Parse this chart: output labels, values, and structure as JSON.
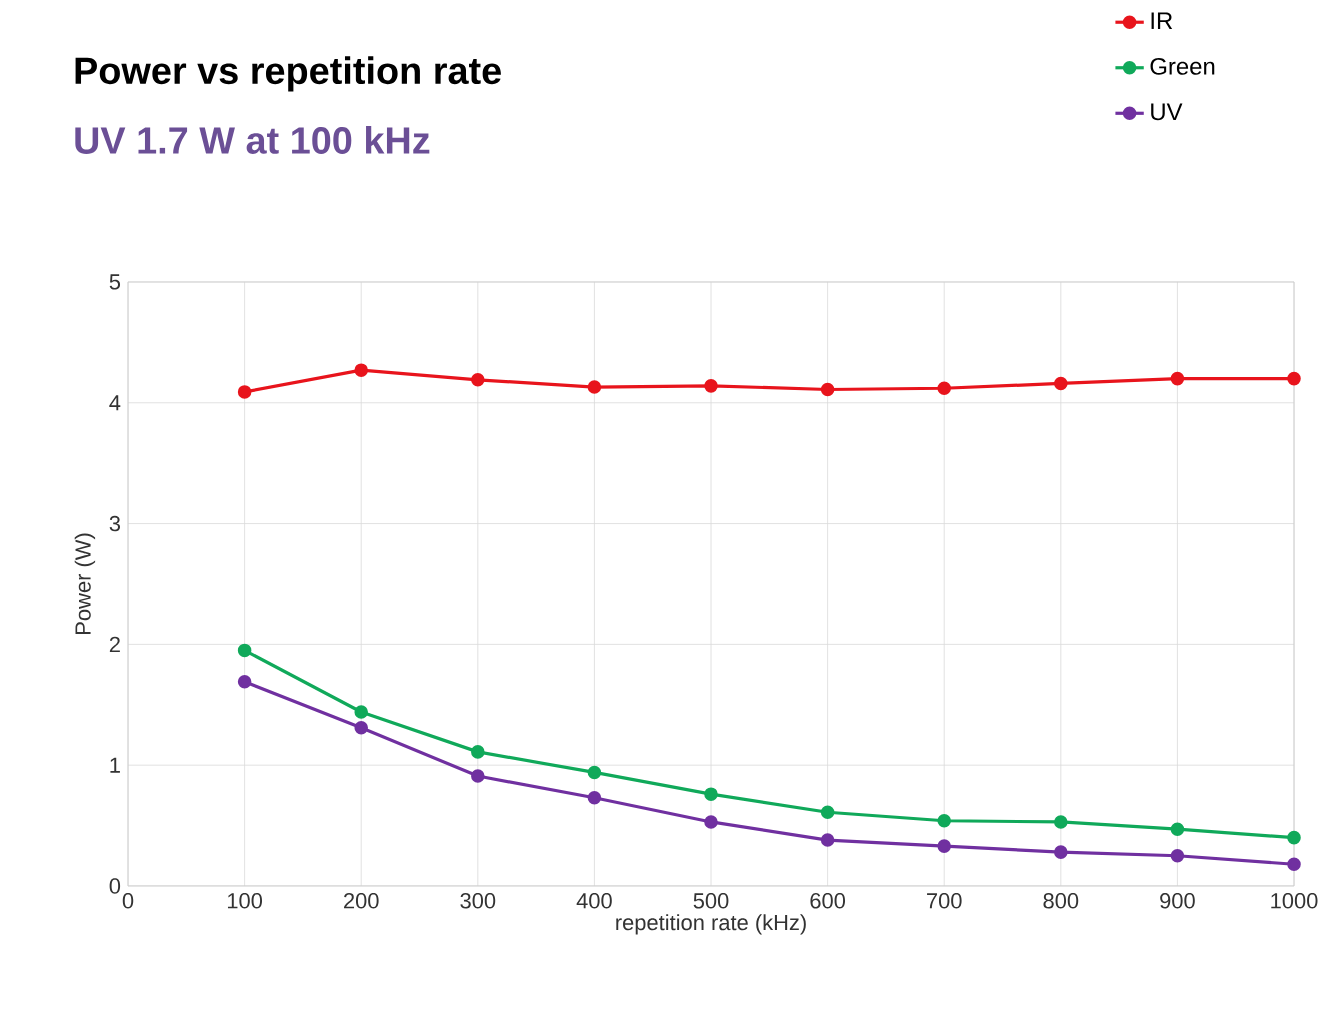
{
  "chart_data": {
    "type": "line",
    "title": "Power vs repetition rate",
    "subtitle": "UV 1.7 W at 100 kHz",
    "xlabel": "repetition rate (kHz)",
    "ylabel": "Power (W)",
    "x": [
      100,
      200,
      300,
      400,
      500,
      600,
      700,
      800,
      900,
      1000
    ],
    "series": [
      {
        "name": "IR",
        "color": "#e8141c",
        "values": [
          4.09,
          4.27,
          4.19,
          4.13,
          4.14,
          4.11,
          4.12,
          4.16,
          4.2,
          4.2
        ]
      },
      {
        "name": "Green",
        "color": "#10a95a",
        "values": [
          1.95,
          1.44,
          1.11,
          0.94,
          0.76,
          0.61,
          0.54,
          0.53,
          0.47,
          0.4
        ]
      },
      {
        "name": "UV",
        "color": "#7030a0",
        "values": [
          1.69,
          1.31,
          0.91,
          0.73,
          0.53,
          0.38,
          0.33,
          0.28,
          0.25,
          0.18
        ]
      }
    ],
    "xlim": [
      0,
      1000
    ],
    "xticks": [
      0,
      100,
      200,
      300,
      400,
      500,
      600,
      700,
      800,
      900,
      1000
    ],
    "ylim": [
      0,
      5
    ],
    "yticks": [
      0,
      1,
      2,
      3,
      4,
      5
    ],
    "grid": true,
    "legend": "top right",
    "marker": "circle",
    "line_style": "solid"
  }
}
